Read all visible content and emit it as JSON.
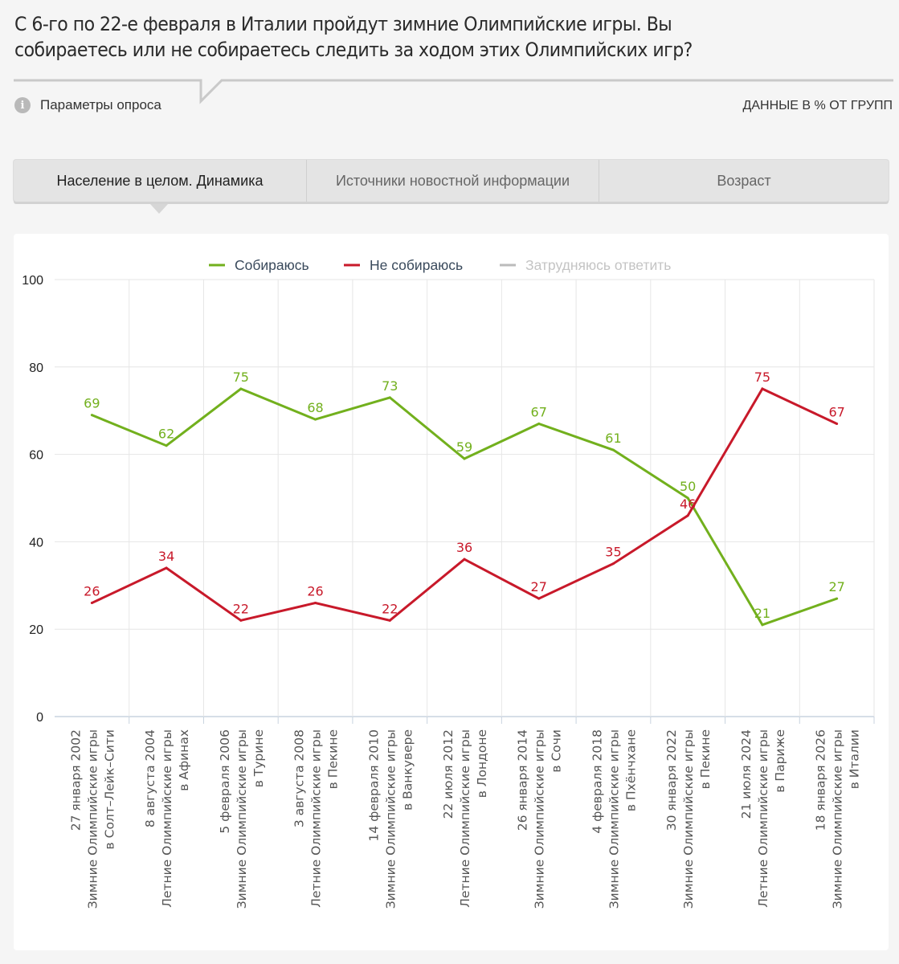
{
  "question": {
    "line1": "С 6-го по 22-е февраля в Италии пройдут зимние Олимпийские игры. Вы",
    "line2": "собираетесь или не собираетесь следить за ходом этих Олимпийских игр?"
  },
  "params_label": "Параметры опроса",
  "info_icon_glyph": "i",
  "data_note": "ДАННЫЕ В % ОТ ГРУПП",
  "tabs": [
    {
      "label": "Население в целом. Динамика",
      "active": true
    },
    {
      "label": "Источники новостной информации",
      "active": false
    },
    {
      "label": "Возраст",
      "active": false
    }
  ],
  "chart_data": {
    "type": "line",
    "title": "",
    "xlabel": "",
    "ylabel": "",
    "ylim": [
      0,
      100
    ],
    "yticks": [
      0,
      20,
      40,
      60,
      80,
      100
    ],
    "grid": true,
    "legend_position": "top-center",
    "categories": [
      [
        "27 января 2002",
        "Зимние Олимпийские игры",
        "в Солт–Лейк–Сити"
      ],
      [
        "8 августа 2004",
        "Летние Олимпийские игры",
        "в Афинах"
      ],
      [
        "5 февраля 2006",
        "Зимние Олимпийские игры",
        "в Турине"
      ],
      [
        "3 августа 2008",
        "Летние Олимпийские игры",
        "в Пекине"
      ],
      [
        "14 февраля 2010",
        "Зимние Олимпийские игры",
        "в Ванкувере"
      ],
      [
        "22 июля 2012",
        "Летние Олимпийские игры",
        "в Лондоне"
      ],
      [
        "26 января 2014",
        "Зимние Олимпийские игры",
        "в Сочи"
      ],
      [
        "4 февраля 2018",
        "Зимние Олимпийские игры",
        "в Пхёнчхане"
      ],
      [
        "30 января 2022",
        "Зимние Олимпийские игры",
        "в Пекине"
      ],
      [
        "21 июля 2024",
        "Летние Олимпийские игры",
        "в Париже"
      ],
      [
        "18 января 2026",
        "Зимние Олимпийские игры",
        "в Италии"
      ]
    ],
    "series": [
      {
        "name": "Собираюсь",
        "color": "#72b01d",
        "visible": true,
        "values": [
          69,
          62,
          75,
          68,
          73,
          59,
          67,
          61,
          50,
          21,
          27
        ]
      },
      {
        "name": "Не собираюсь",
        "color": "#c8192a",
        "visible": true,
        "values": [
          26,
          34,
          22,
          26,
          22,
          36,
          27,
          35,
          46,
          75,
          67
        ]
      },
      {
        "name": "Затрудняюсь ответить",
        "color": "#bbbbbb",
        "visible": false,
        "values": []
      }
    ]
  }
}
